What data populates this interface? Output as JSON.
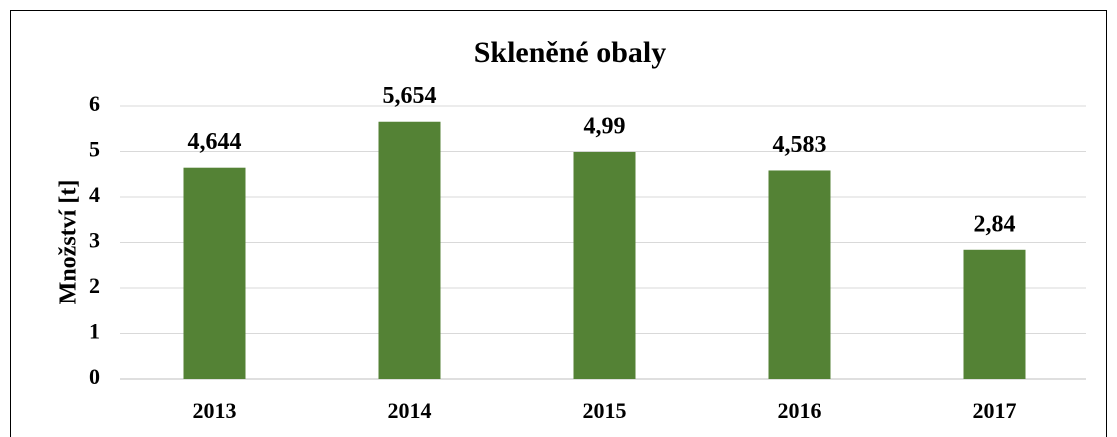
{
  "chart_data": {
    "type": "bar",
    "title": "Skleněné obaly",
    "y_label": "Množství [t]",
    "categories": [
      "2013",
      "2014",
      "2015",
      "2016",
      "2017"
    ],
    "values": [
      4.644,
      5.654,
      4.99,
      4.583,
      2.84
    ],
    "value_labels": [
      "4,644",
      "5,654",
      "4,99",
      "4,583",
      "2,84"
    ],
    "color": "#548235",
    "ylim": [
      0,
      6
    ],
    "yticks": [
      0,
      1,
      2,
      3,
      4,
      5,
      6
    ],
    "grid": true
  }
}
